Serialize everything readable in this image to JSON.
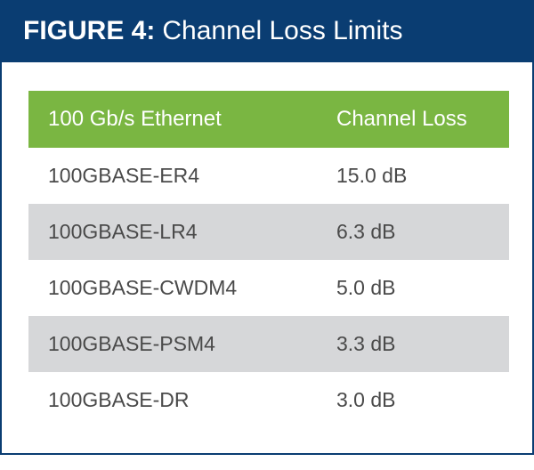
{
  "figure": {
    "label": "FIGURE 4:",
    "caption": "Channel Loss Limits"
  },
  "table": {
    "columns": [
      "100 Gb/s Ethernet",
      "Channel Loss"
    ],
    "rows": [
      [
        "100GBASE-ER4",
        "15.0 dB"
      ],
      [
        "100GBASE-LR4",
        "6.3 dB"
      ],
      [
        "100GBASE-CWDM4",
        "5.0 dB"
      ],
      [
        "100GBASE-PSM4",
        "3.3 dB"
      ],
      [
        "100GBASE-DR",
        "3.0 dB"
      ]
    ],
    "col_widths": [
      "60%",
      "40%"
    ]
  },
  "style": {
    "title_bg": "#0a3d72",
    "title_color": "#ffffff",
    "title_fontsize": 30,
    "border_color": "#0a3d72",
    "header_bg": "#7ab642",
    "header_color": "#ffffff",
    "header_fontsize": 24,
    "body_fontsize": 23,
    "body_color": "#4a4a4a",
    "row_bg_even": "#ffffff",
    "row_bg_odd": "#d6d7d9"
  }
}
